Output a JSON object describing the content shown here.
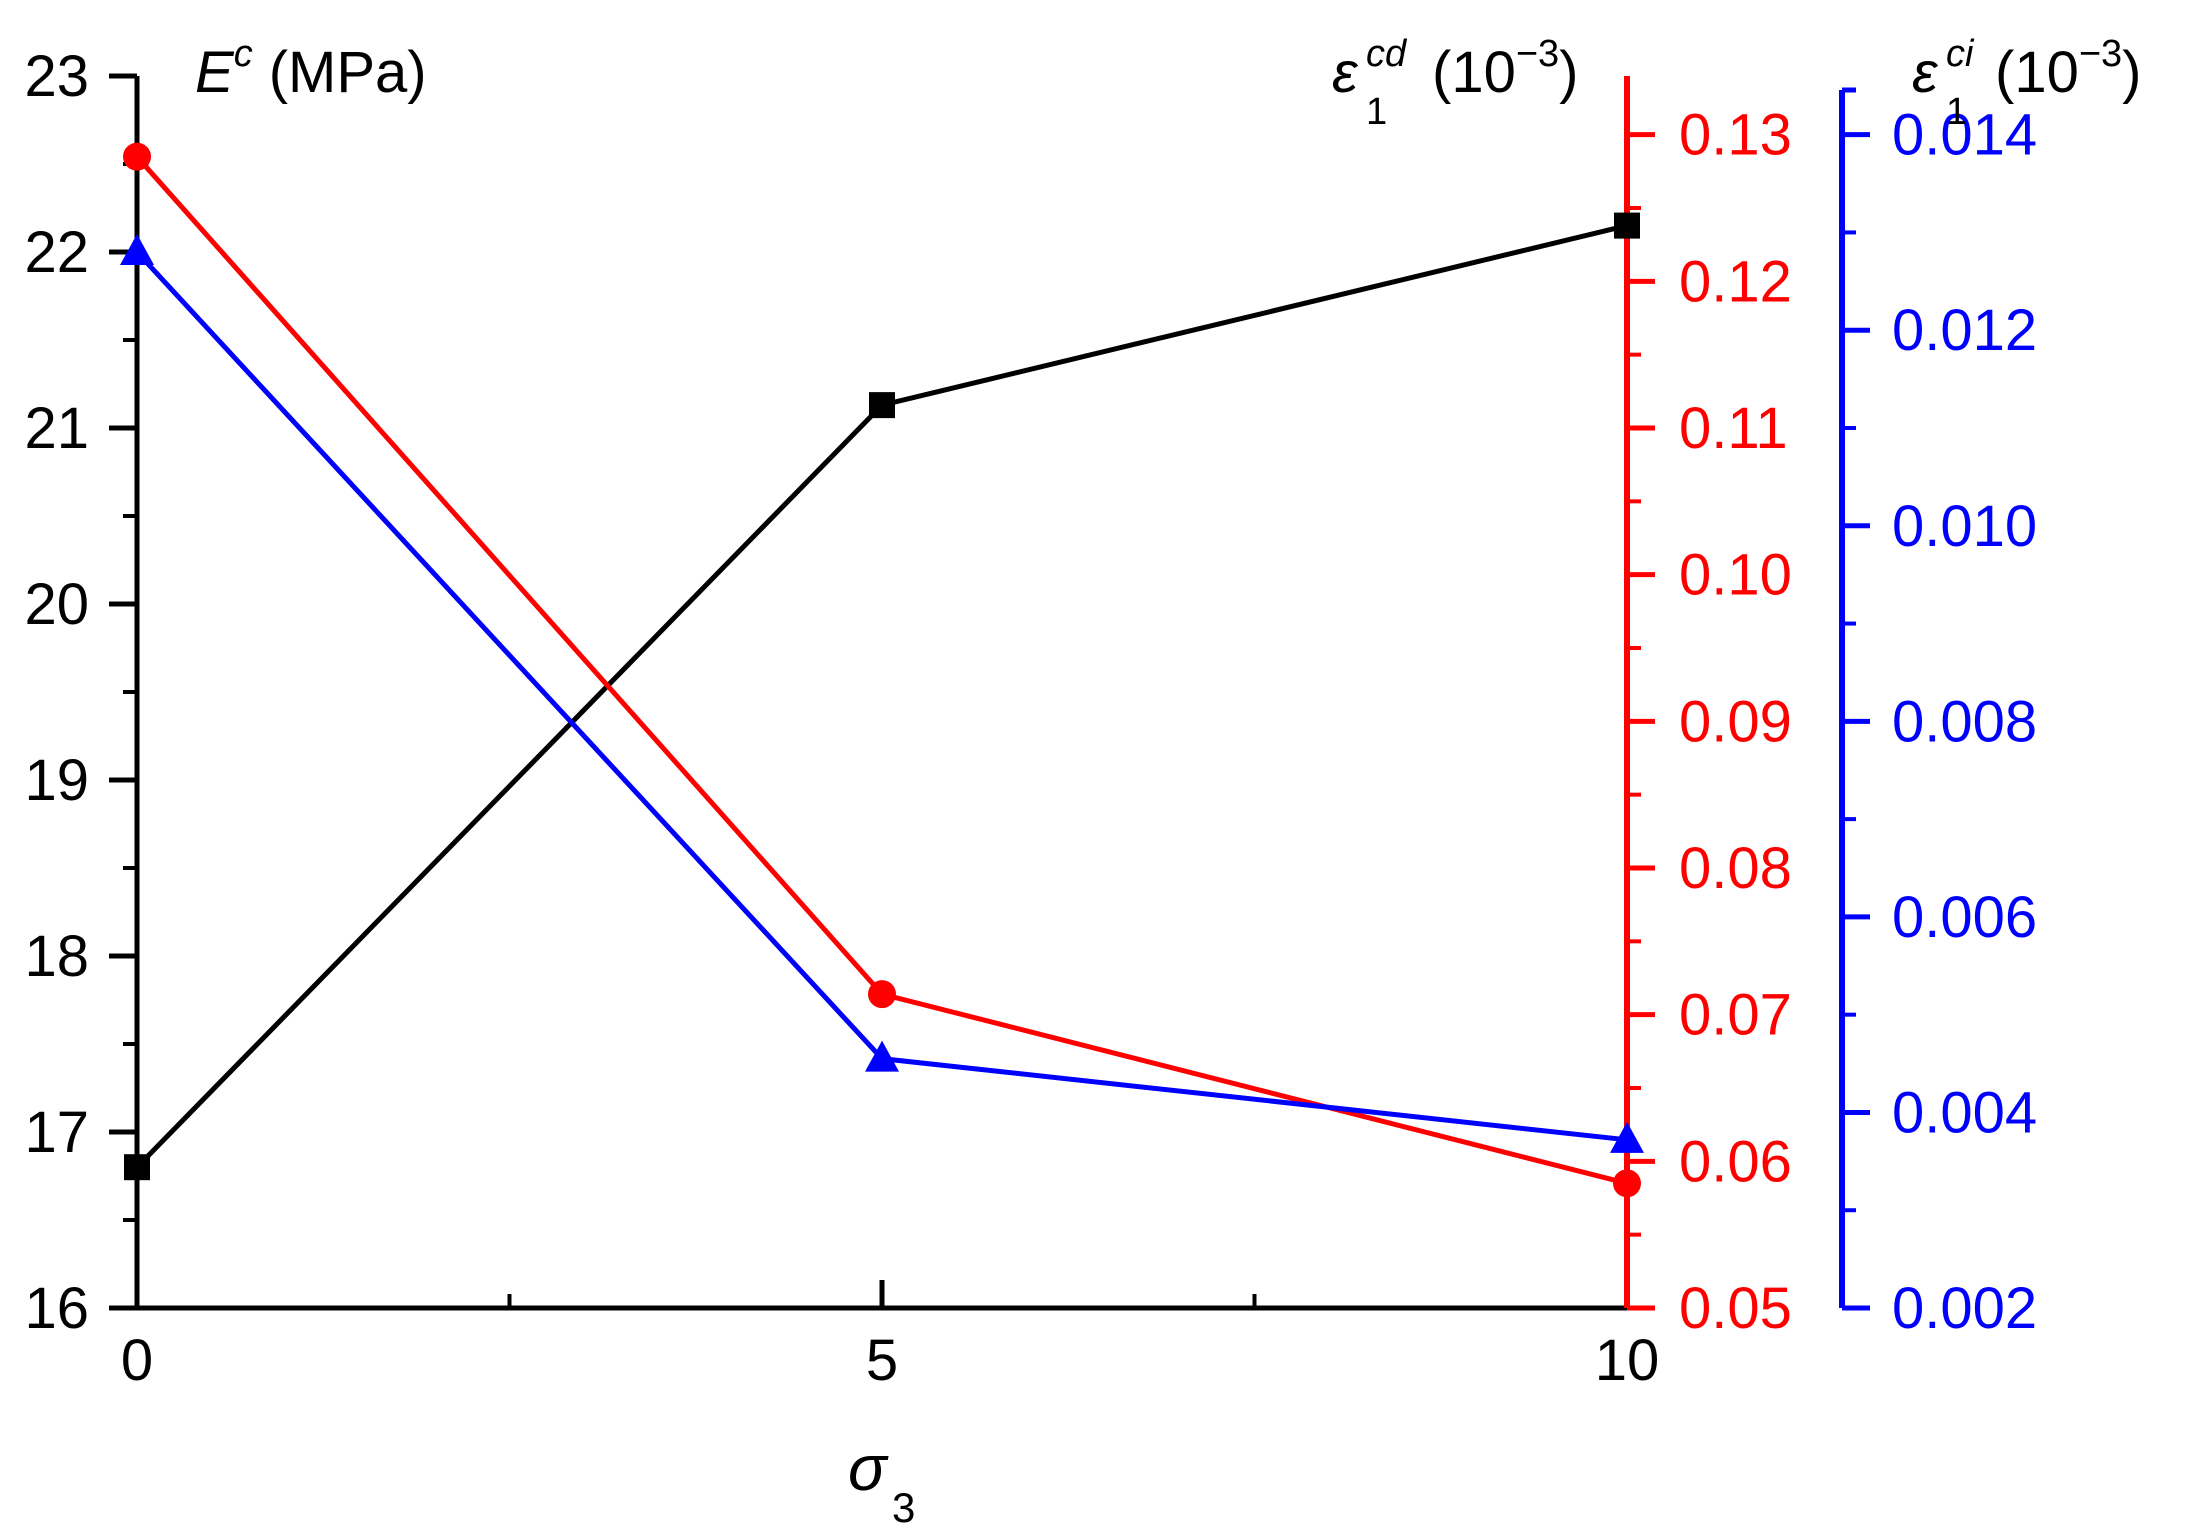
{
  "chart_data": {
    "type": "line",
    "x": [
      0,
      5,
      10
    ],
    "x_ticks": [
      "0",
      "5",
      "10"
    ],
    "xlim": [
      0,
      10
    ],
    "xlabel": {
      "symbol": "σ",
      "subscript": "3"
    },
    "grid": false,
    "axes": {
      "left": {
        "color": "#000000",
        "ylim": [
          16,
          23
        ],
        "ticks": [
          "16",
          "17",
          "18",
          "19",
          "20",
          "21",
          "22",
          "23"
        ],
        "label": {
          "symbol": "E",
          "superscript": "c",
          "unit": "(MPa)"
        }
      },
      "right1": {
        "color": "#ff0000",
        "ylim": [
          0.05,
          0.134
        ],
        "ticks": [
          "0.05",
          "0.06",
          "0.07",
          "0.08",
          "0.09",
          "0.10",
          "0.11",
          "0.12",
          "0.13"
        ],
        "label": {
          "symbol": "ε",
          "subscript": "1",
          "superscript": "cd",
          "unit_prefix": "(10",
          "unit_exp": "−3",
          "unit_suffix": ")"
        }
      },
      "right2": {
        "color": "#0000ff",
        "ylim": [
          0.002,
          0.0146
        ],
        "ticks": [
          "0.002",
          "0.004",
          "0.006",
          "0.008",
          "0.010",
          "0.012",
          "0.014"
        ],
        "label": {
          "symbol": "ε",
          "subscript": "1",
          "superscript": "ci",
          "unit_prefix": "(10",
          "unit_exp": "−3",
          "unit_suffix": ")"
        }
      }
    },
    "series": [
      {
        "name": "E^c",
        "axis": "left",
        "color": "#000000",
        "marker": "square",
        "values": [
          16.8,
          21.13,
          22.15
        ]
      },
      {
        "name": "ε1^cd",
        "axis": "right1",
        "color": "#ff0000",
        "marker": "circle",
        "values": [
          0.1285,
          0.0714,
          0.0585
        ]
      },
      {
        "name": "ε1^ci",
        "axis": "right2",
        "color": "#0000ff",
        "marker": "triangle",
        "values": [
          0.0128,
          0.00455,
          0.00372
        ]
      }
    ]
  }
}
